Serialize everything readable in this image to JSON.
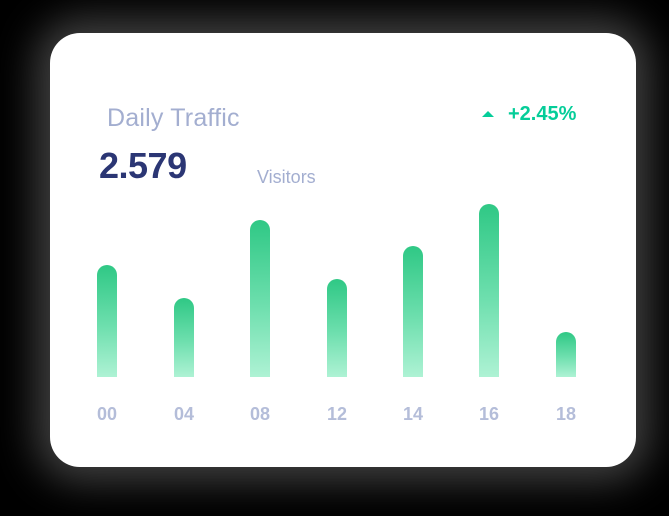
{
  "card": {
    "title": "Daily Traffic",
    "value": "2.579",
    "unit": "Visitors",
    "change": "+2.45%",
    "change_icon": "triangle-up-icon",
    "colors": {
      "title": "#a3aed0",
      "value": "#2b3674",
      "positive": "#05cd99",
      "bar_top": "#2fc885",
      "bar_bottom": "#aef2d4"
    }
  },
  "chart_data": {
    "type": "bar",
    "title": "Daily Traffic",
    "categories": [
      "00",
      "04",
      "08",
      "12",
      "14",
      "16",
      "18"
    ],
    "values": [
      112,
      79,
      157,
      98,
      131,
      173,
      45
    ],
    "xlabel": "",
    "ylabel": "Visitors",
    "grid": false,
    "legend": "none",
    "note": "values are relative bar heights (px); y-axis not shown"
  }
}
